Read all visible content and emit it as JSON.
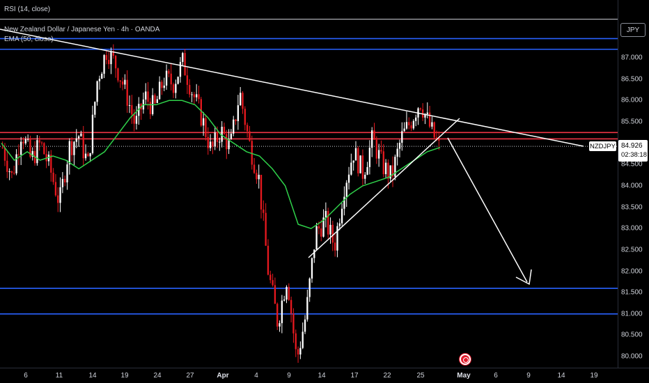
{
  "indicator_strip": {
    "label": "RSI (14, close)"
  },
  "legend": {
    "title": "New Zealand Dollar / Japanese Yen · 4h · OANDA",
    "ema": "EMA (50, close)"
  },
  "currency_button": "JPY",
  "symbol_tag": "NZDJPY",
  "last_price": {
    "price": "84.926",
    "countdown": "02:38:18"
  },
  "price_axis_ticks": [
    "87.000",
    "86.500",
    "86.000",
    "85.500",
    "85.000",
    "84.500",
    "84.000",
    "83.500",
    "83.000",
    "82.500",
    "82.000",
    "81.500",
    "81.000",
    "80.500",
    "80.000"
  ],
  "time_axis_labels": [
    {
      "text": "6",
      "month": false
    },
    {
      "text": "11",
      "month": false
    },
    {
      "text": "14",
      "month": false
    },
    {
      "text": "19",
      "month": false
    },
    {
      "text": "24",
      "month": false
    },
    {
      "text": "27",
      "month": false
    },
    {
      "text": "Apr",
      "month": true
    },
    {
      "text": "4",
      "month": false
    },
    {
      "text": "9",
      "month": false
    },
    {
      "text": "14",
      "month": false
    },
    {
      "text": "17",
      "month": false
    },
    {
      "text": "22",
      "month": false
    },
    {
      "text": "25",
      "month": false
    },
    {
      "text": "May",
      "month": true
    },
    {
      "text": "6",
      "month": false
    },
    {
      "text": "9",
      "month": false
    },
    {
      "text": "14",
      "month": false
    },
    {
      "text": "19",
      "month": false
    }
  ],
  "colors": {
    "background": "#000000",
    "bull": "#ffffff",
    "bear": "#e8191f",
    "ema": "#2fd14a",
    "support_resistance_blue": "#2962ff",
    "resistance_red": "#f23645",
    "drawings": "#ffffff",
    "event_icon": "#e21b2c"
  },
  "chart_data": {
    "type": "candlestick",
    "title": "New Zealand Dollar / Japanese Yen · 4h · OANDA",
    "ylabel": "JPY",
    "ylim": [
      79.9,
      87.6
    ],
    "last_price": 84.926,
    "ema_period": 50,
    "horizontal_levels": [
      {
        "price": 87.45,
        "color": "blue"
      },
      {
        "price": 87.2,
        "color": "blue"
      },
      {
        "price": 85.25,
        "color": "red"
      },
      {
        "price": 85.1,
        "color": "red"
      },
      {
        "price": 81.6,
        "color": "blue"
      },
      {
        "price": 81.0,
        "color": "blue"
      }
    ],
    "close_path": [
      84.9,
      84.2,
      85.3,
      84.6,
      85.0,
      84.4,
      83.6,
      84.9,
      85.2,
      84.5,
      86.5,
      87.2,
      86.8,
      86.2,
      85.4,
      86.1,
      85.8,
      86.5,
      86.4,
      86.9,
      86.2,
      85.6,
      84.8,
      85.3,
      84.9,
      86.2,
      85.0,
      84.2,
      82.0,
      80.8,
      81.9,
      79.9,
      81.0,
      82.9,
      83.2,
      82.6,
      84.0,
      84.8,
      84.3,
      85.1,
      84.5,
      84.2,
      85.1,
      85.5,
      86.0,
      85.4,
      84.9
    ],
    "ema_path": [
      85.0,
      84.6,
      84.8,
      84.6,
      84.7,
      84.6,
      84.4,
      84.6,
      84.8,
      85.2,
      85.6,
      85.9,
      85.9,
      86.0,
      86.0,
      85.9,
      85.6,
      85.2,
      85.0,
      84.8,
      84.7,
      84.4,
      84.0,
      83.1,
      83.0,
      83.2,
      83.5,
      83.8,
      84.0,
      84.1,
      84.2,
      84.4,
      84.6,
      84.8,
      84.9
    ]
  }
}
